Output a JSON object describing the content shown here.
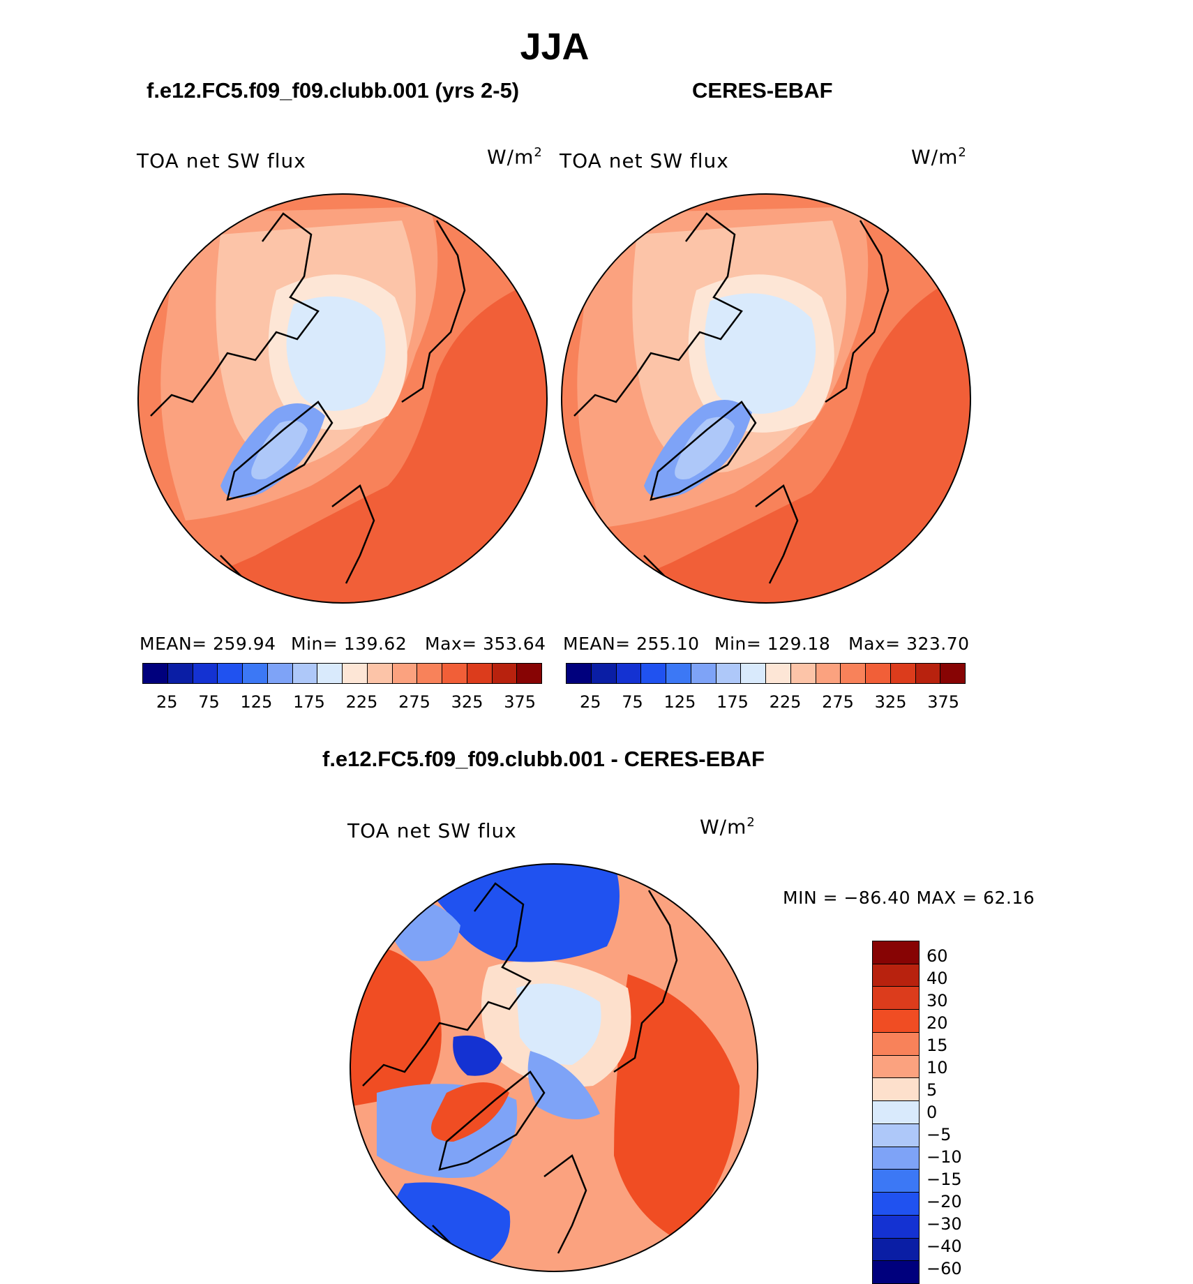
{
  "figure": {
    "season": "JJA",
    "units_text": "W/m",
    "units_power": "2"
  },
  "panels": [
    {
      "title": "f.e12.FC5.f09_f09.clubb.001 (yrs 2-5)",
      "variable": "TOA net SW flux",
      "stats": {
        "mean": "MEAN= 259.94",
        "min": "Min= 139.62",
        "max": "Max= 353.64"
      }
    },
    {
      "title": "CERES-EBAF",
      "variable": "TOA net SW flux",
      "stats": {
        "mean": "MEAN= 255.10",
        "min": "Min= 129.18",
        "max": "Max= 323.70"
      }
    }
  ],
  "difference": {
    "title": "f.e12.FC5.f09_f09.clubb.001 - CERES-EBAF",
    "variable": "TOA net SW flux",
    "minmax": "MIN = −86.40 MAX =   62.16"
  },
  "colorbar_abs": {
    "ticks": [
      "25",
      "75",
      "125",
      "175",
      "225",
      "275",
      "325",
      "375"
    ],
    "colors": [
      "#00007d",
      "#0a1ea5",
      "#1432d2",
      "#2052f0",
      "#3c78f5",
      "#7ea3f7",
      "#aec8f9",
      "#d9eafc",
      "#fde6d6",
      "#fcc4a8",
      "#fba27f",
      "#f8825a",
      "#f15f38",
      "#dc3c1c",
      "#b8220e",
      "#870404"
    ]
  },
  "colorbar_diff": {
    "ticks": [
      "60",
      "40",
      "30",
      "20",
      "15",
      "10",
      "5",
      "0",
      "−5",
      "−10",
      "−15",
      "−20",
      "−30",
      "−40",
      "−60"
    ],
    "colors": [
      "#870404",
      "#b8220e",
      "#dc3c1c",
      "#f04d23",
      "#f8825a",
      "#fba27f",
      "#fde0cc",
      "#d9eafc",
      "#aec8f9",
      "#7ea3f7",
      "#3c78f5",
      "#2052f0",
      "#1432d2",
      "#0a1ea5",
      "#00007d"
    ]
  },
  "map_colors": {
    "ocean_high": "#f15f38",
    "ocean_mid": "#f8825a",
    "land_mid": "#fba27f",
    "land_light": "#fcc4a8",
    "ice_edge": "#fde6d6",
    "sea_ice": "#d9eafc",
    "greenland": "#7ea3f7",
    "greenland_core": "#aec8f9",
    "diff_base": "#fba27f",
    "diff_strong_pos": "#f04d23",
    "diff_pale": "#fde0cc",
    "diff_neutral": "#d9eafc",
    "diff_neg_light": "#7ea3f7",
    "diff_neg": "#2052f0",
    "diff_neg_strong": "#1432d2"
  }
}
